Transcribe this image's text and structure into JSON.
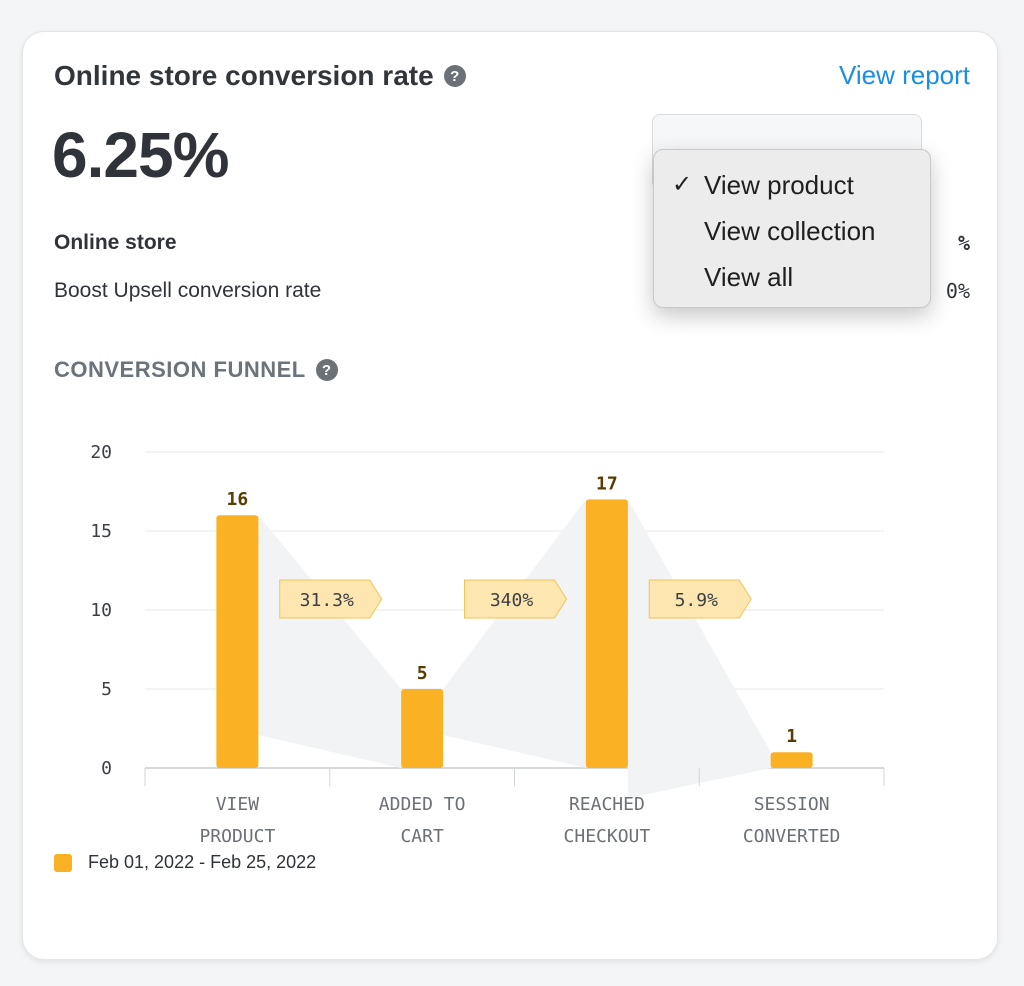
{
  "card": {
    "title": "Online store conversion rate",
    "title_help_icon": "question-circle-icon",
    "view_report": "View report",
    "big_value": "6.25%"
  },
  "stats": [
    {
      "label": "Online store",
      "value": "%"
    },
    {
      "label": "Boost Upsell conversion rate",
      "value": "0%"
    }
  ],
  "dropdown": {
    "options": [
      {
        "label": "View product",
        "selected": true
      },
      {
        "label": "View collection",
        "selected": false
      },
      {
        "label": "View all",
        "selected": false
      }
    ],
    "check_glyph": "✓"
  },
  "funnel": {
    "heading": "CONVERSION FUNNEL",
    "help_icon": "question-circle-icon"
  },
  "chart_data": {
    "type": "bar",
    "categories": [
      [
        "VIEW",
        "PRODUCT"
      ],
      [
        "ADDED TO",
        "CART"
      ],
      [
        "REACHED",
        "CHECKOUT"
      ],
      [
        "SESSION",
        "CONVERTED"
      ]
    ],
    "values": [
      16,
      5,
      17,
      1
    ],
    "step_rates": [
      "31.3%",
      "340%",
      "5.9%"
    ],
    "ylim": [
      0,
      20
    ],
    "yticks": [
      0,
      5,
      10,
      15,
      20
    ],
    "grid": true,
    "colors": {
      "bar": "#fbb124",
      "bar_label": "#5a3b00",
      "rate_fill": "#fde6b0",
      "rate_stroke": "#f3c455",
      "funnel_fill": "#f1f3f4"
    }
  },
  "legend": {
    "label": "Feb 01, 2022 - Feb 25, 2022",
    "color": "#fbb124"
  }
}
